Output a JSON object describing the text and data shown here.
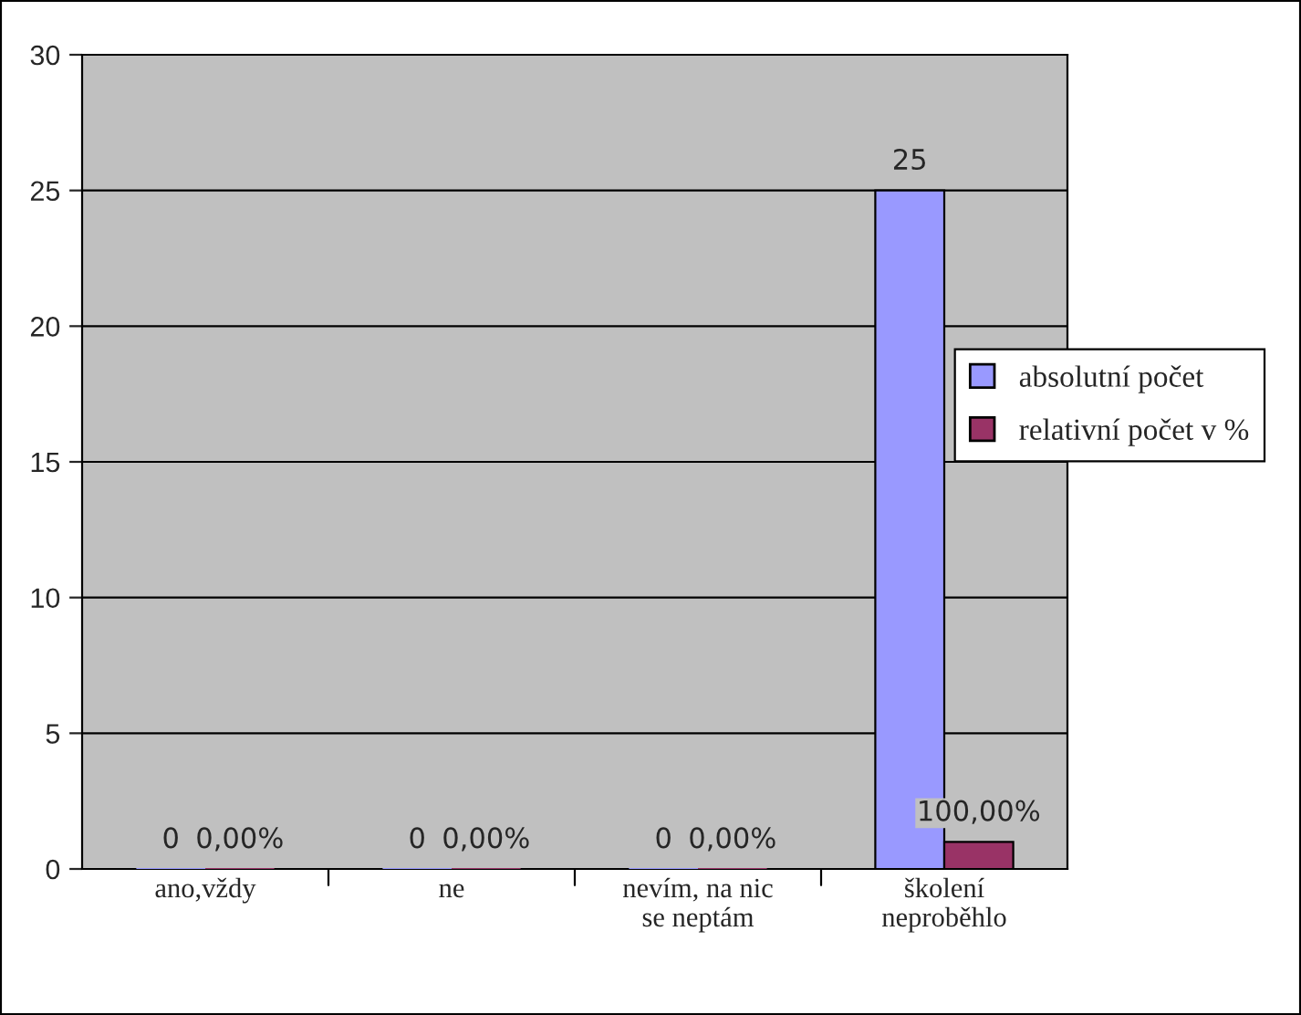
{
  "chart_data": {
    "type": "bar",
    "categories": [
      "ano,vždy",
      "ne",
      "nevím, na nic\nse neptám",
      "školení\nneproběhlo"
    ],
    "series": [
      {
        "name": "absolutní počet",
        "color": "#9999ff",
        "values": [
          0,
          0,
          0,
          25
        ],
        "value_labels": [
          "0",
          "0",
          "0",
          "25"
        ]
      },
      {
        "name": "relativní počet v %",
        "color": "#993366",
        "values": [
          0,
          0,
          0,
          1
        ],
        "value_labels": [
          "0,00%",
          "0,00%",
          "0,00%",
          "100,00%"
        ]
      }
    ],
    "ylim": [
      0,
      30
    ],
    "yticks": [
      0,
      5,
      10,
      15,
      20,
      25,
      30
    ],
    "grid": "y",
    "legend": "right"
  }
}
